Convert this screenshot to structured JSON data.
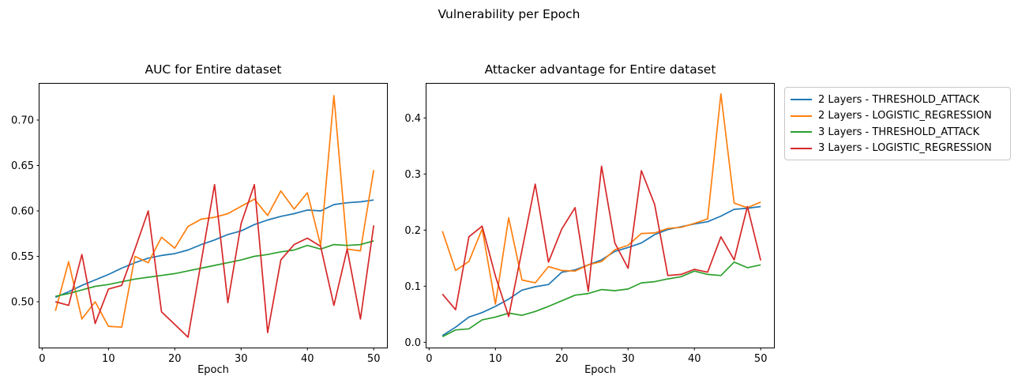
{
  "figure": {
    "title": "Vulnerability per Epoch",
    "background": "#ffffff",
    "text_color": "#000000"
  },
  "legend": {
    "position": "outside-right",
    "items": [
      {
        "label": "2 Layers - THRESHOLD_ATTACK",
        "color": "#1f77b4"
      },
      {
        "label": "2 Layers - LOGISTIC_REGRESSION",
        "color": "#ff7f0e"
      },
      {
        "label": "3 Layers - THRESHOLD_ATTACK",
        "color": "#2ca02c"
      },
      {
        "label": "3 Layers - LOGISTIC_REGRESSION",
        "color": "#d62728"
      }
    ]
  },
  "chart_data": [
    {
      "type": "line",
      "title": "AUC for Entire dataset",
      "xlabel": "Epoch",
      "ylabel": "",
      "grid": false,
      "xlim": [
        -0.4,
        52.0
      ],
      "ylim": [
        0.4496,
        0.74
      ],
      "xticks": [
        0,
        10,
        20,
        30,
        40,
        50
      ],
      "yticks": [
        0.5,
        0.55,
        0.6,
        0.65,
        0.7
      ],
      "ytick_labels": [
        "0.50",
        "0.55",
        "0.60",
        "0.65",
        "0.70"
      ],
      "x": [
        2,
        4,
        6,
        8,
        10,
        12,
        14,
        16,
        18,
        20,
        22,
        24,
        26,
        28,
        30,
        32,
        34,
        36,
        38,
        40,
        42,
        44,
        46,
        48,
        50
      ],
      "series": [
        {
          "name": "2 Layers - THRESHOLD_ATTACK",
          "color": "#1f77b4",
          "values": [
            0.505,
            0.511,
            0.518,
            0.524,
            0.53,
            0.537,
            0.543,
            0.548,
            0.551,
            0.553,
            0.557,
            0.563,
            0.568,
            0.574,
            0.578,
            0.585,
            0.59,
            0.594,
            0.597,
            0.601,
            0.6,
            0.607,
            0.609,
            0.61,
            0.612
          ]
        },
        {
          "name": "2 Layers - LOGISTIC_REGRESSION",
          "color": "#ff7f0e",
          "values": [
            0.49,
            0.544,
            0.481,
            0.5,
            0.473,
            0.472,
            0.55,
            0.543,
            0.571,
            0.559,
            0.583,
            0.591,
            0.593,
            0.597,
            0.605,
            0.613,
            0.595,
            0.622,
            0.602,
            0.62,
            0.562,
            0.727,
            0.558,
            0.556,
            0.645
          ]
        },
        {
          "name": "3 Layers - THRESHOLD_ATTACK",
          "color": "#2ca02c",
          "values": [
            0.506,
            0.509,
            0.513,
            0.517,
            0.519,
            0.522,
            0.525,
            0.527,
            0.529,
            0.531,
            0.534,
            0.537,
            0.54,
            0.543,
            0.546,
            0.55,
            0.552,
            0.555,
            0.557,
            0.562,
            0.558,
            0.563,
            0.562,
            0.563,
            0.567
          ]
        },
        {
          "name": "3 Layers - LOGISTIC_REGRESSION",
          "color": "#d62728",
          "values": [
            0.5,
            0.496,
            0.552,
            0.476,
            0.514,
            0.518,
            0.558,
            0.6,
            0.489,
            0.475,
            0.461,
            0.545,
            0.629,
            0.499,
            0.586,
            0.629,
            0.466,
            0.546,
            0.563,
            0.57,
            0.561,
            0.496,
            0.558,
            0.481,
            0.584
          ]
        }
      ]
    },
    {
      "type": "line",
      "title": "Attacker advantage for Entire dataset",
      "xlabel": "Epoch",
      "ylabel": "",
      "grid": false,
      "xlim": [
        -0.4,
        52.0
      ],
      "ylim": [
        -0.0094,
        0.461
      ],
      "xticks": [
        0,
        10,
        20,
        30,
        40,
        50
      ],
      "yticks": [
        0.0,
        0.1,
        0.2,
        0.3,
        0.4
      ],
      "ytick_labels": [
        "0.0",
        "0.1",
        "0.2",
        "0.3",
        "0.4"
      ],
      "x": [
        2,
        4,
        6,
        8,
        10,
        12,
        14,
        16,
        18,
        20,
        22,
        24,
        26,
        28,
        30,
        32,
        34,
        36,
        38,
        40,
        42,
        44,
        46,
        48,
        50
      ],
      "series": [
        {
          "name": "2 Layers - THRESHOLD_ATTACK",
          "color": "#1f77b4",
          "values": [
            0.012,
            0.027,
            0.045,
            0.053,
            0.064,
            0.077,
            0.093,
            0.099,
            0.103,
            0.125,
            0.129,
            0.138,
            0.147,
            0.162,
            0.169,
            0.177,
            0.192,
            0.201,
            0.206,
            0.211,
            0.215,
            0.225,
            0.237,
            0.239,
            0.242
          ]
        },
        {
          "name": "2 Layers - LOGISTIC_REGRESSION",
          "color": "#ff7f0e",
          "values": [
            0.198,
            0.128,
            0.144,
            0.202,
            0.068,
            0.222,
            0.111,
            0.106,
            0.135,
            0.128,
            0.127,
            0.138,
            0.144,
            0.165,
            0.173,
            0.194,
            0.195,
            0.203,
            0.205,
            0.212,
            0.22,
            0.443,
            0.248,
            0.24,
            0.25
          ]
        },
        {
          "name": "3 Layers - THRESHOLD_ATTACK",
          "color": "#2ca02c",
          "values": [
            0.01,
            0.022,
            0.024,
            0.04,
            0.045,
            0.052,
            0.048,
            0.055,
            0.064,
            0.074,
            0.084,
            0.087,
            0.094,
            0.092,
            0.095,
            0.106,
            0.108,
            0.113,
            0.117,
            0.127,
            0.121,
            0.119,
            0.143,
            0.133,
            0.138
          ]
        },
        {
          "name": "3 Layers - LOGISTIC_REGRESSION",
          "color": "#d62728",
          "values": [
            0.086,
            0.058,
            0.188,
            0.207,
            0.118,
            0.046,
            0.164,
            0.282,
            0.143,
            0.202,
            0.24,
            0.091,
            0.314,
            0.177,
            0.132,
            0.306,
            0.246,
            0.119,
            0.121,
            0.13,
            0.125,
            0.188,
            0.147,
            0.242,
            0.146
          ]
        }
      ]
    }
  ]
}
